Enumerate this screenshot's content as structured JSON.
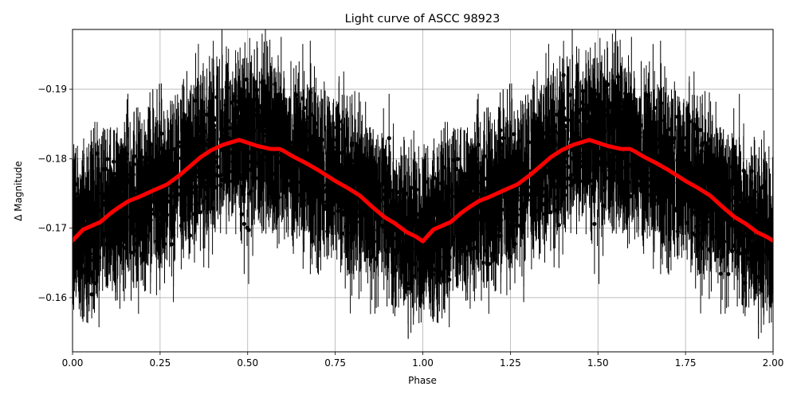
{
  "chart_data": {
    "type": "scatter",
    "title": "Light curve of ASCC 98923",
    "xlabel": "Phase",
    "ylabel": "Δ Magnitude",
    "xlim": [
      0.0,
      2.0
    ],
    "ylim": [
      -0.1986,
      -0.1522
    ],
    "y_inverted": true,
    "grid": true,
    "legend": null,
    "xticks": [
      0.0,
      0.25,
      0.5,
      0.75,
      1.0,
      1.25,
      1.5,
      1.75,
      2.0
    ],
    "xtick_labels": [
      "0.00",
      "0.25",
      "0.50",
      "0.75",
      "1.00",
      "1.25",
      "1.50",
      "1.75",
      "2.00"
    ],
    "yticks": [
      -0.19,
      -0.18,
      -0.17,
      -0.16
    ],
    "ytick_labels": [
      "−0.19",
      "−0.18",
      "−0.17",
      "−0.16"
    ],
    "series": [
      {
        "name": "observations",
        "style": "black points with vertical error bars",
        "color": "#000000",
        "description": "Dense phase-folded photometry; scatter band roughly ±0.013 mag around the binned curve, shown twice over phase 0–2",
        "envelope_upper_edge": [
          [
            0.0,
            -0.186
          ],
          [
            0.1,
            -0.19
          ],
          [
            0.25,
            -0.195
          ],
          [
            0.5,
            -0.1986
          ],
          [
            0.75,
            -0.195
          ],
          [
            0.9,
            -0.19
          ],
          [
            1.0,
            -0.186
          ]
        ],
        "envelope_lower_edge": [
          [
            0.0,
            -0.1522
          ],
          [
            0.25,
            -0.158
          ],
          [
            0.5,
            -0.1675
          ],
          [
            0.75,
            -0.158
          ],
          [
            1.0,
            -0.1522
          ]
        ]
      },
      {
        "name": "binned mean",
        "style": "thick red line",
        "color": "#ff0000",
        "x": [
          0.0,
          0.03,
          0.08,
          0.11,
          0.135,
          0.16,
          0.19,
          0.225,
          0.27,
          0.305,
          0.34,
          0.365,
          0.395,
          0.43,
          0.475,
          0.53,
          0.565,
          0.59,
          0.6,
          0.63,
          0.665,
          0.7,
          0.75,
          0.785,
          0.82,
          0.855,
          0.89,
          0.92,
          0.955,
          0.98,
          1.0,
          1.03,
          1.08,
          1.11,
          1.135,
          1.16,
          1.19,
          1.225,
          1.27,
          1.305,
          1.34,
          1.365,
          1.395,
          1.43,
          1.475,
          1.53,
          1.565,
          1.59,
          1.6,
          1.63,
          1.665,
          1.7,
          1.75,
          1.785,
          1.82,
          1.855,
          1.89,
          1.92,
          1.955,
          1.98,
          2.0
        ],
        "y": [
          -0.1682,
          -0.1698,
          -0.1709,
          -0.1722,
          -0.1731,
          -0.1739,
          -0.1745,
          -0.1753,
          -0.1763,
          -0.1776,
          -0.1791,
          -0.1802,
          -0.1812,
          -0.182,
          -0.1827,
          -0.1818,
          -0.1814,
          -0.1814,
          -0.1812,
          -0.1803,
          -0.1794,
          -0.1784,
          -0.1768,
          -0.1758,
          -0.1747,
          -0.1731,
          -0.1716,
          -0.1707,
          -0.1694,
          -0.1688,
          -0.1681,
          -0.1698,
          -0.1709,
          -0.1722,
          -0.1731,
          -0.1739,
          -0.1745,
          -0.1753,
          -0.1763,
          -0.1776,
          -0.1791,
          -0.1802,
          -0.1812,
          -0.182,
          -0.1827,
          -0.1818,
          -0.1814,
          -0.1814,
          -0.1812,
          -0.1803,
          -0.1794,
          -0.1784,
          -0.1768,
          -0.1758,
          -0.1747,
          -0.1731,
          -0.1716,
          -0.1707,
          -0.1694,
          -0.1688,
          -0.1682
        ]
      }
    ]
  },
  "figure": {
    "title": "Light curve of ASCC 98923",
    "xlabel": "Phase",
    "ylabel": "Δ Magnitude",
    "colors": {
      "points": "#000000",
      "curve": "#ff0000",
      "grid": "#b0b0b0",
      "background": "#ffffff"
    }
  }
}
